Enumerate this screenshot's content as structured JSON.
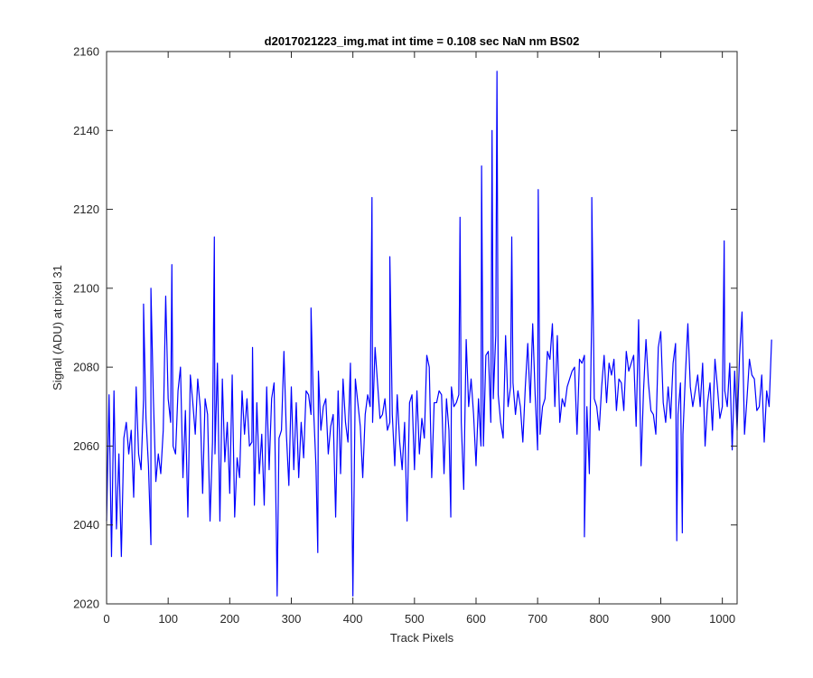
{
  "chart_data": {
    "type": "line",
    "title": "d2017021223_img.mat int time = 0.108 sec  NaN nm BS02",
    "xlabel": "Track Pixels",
    "ylabel": "Signal (ADU) at pixel 31",
    "xlim": [
      0,
      1024
    ],
    "ylim": [
      2020,
      2160
    ],
    "xticks": [
      0,
      100,
      200,
      300,
      400,
      500,
      600,
      700,
      800,
      900,
      1000
    ],
    "yticks": [
      2020,
      2040,
      2060,
      2080,
      2100,
      2120,
      2140,
      2160
    ],
    "grid": false,
    "legend": "none",
    "line_color": "#0000ff",
    "series": [
      {
        "x_start": 0,
        "x_step": 4,
        "values": [
          2041,
          2073,
          2032,
          2074,
          2039,
          2058,
          2032,
          2062,
          2066,
          2058,
          2064,
          2047,
          2075,
          2058,
          2054,
          2072,
          2067,
          2055,
          2035,
          2072,
          2051,
          2058,
          2053,
          2064,
          2098,
          2072,
          2066,
          2060,
          2058,
          2074,
          2080,
          2052,
          2069,
          2042,
          2078,
          2071,
          2063,
          2077,
          2070,
          2048,
          2072,
          2068,
          2041,
          2061,
          2058,
          2081,
          2041,
          2077,
          2056,
          2066,
          2048,
          2078,
          2042,
          2057,
          2052,
          2074,
          2063,
          2072,
          2060,
          2061,
          2045,
          2071,
          2053,
          2063,
          2045,
          2075,
          2054,
          2072,
          2076,
          2035,
          2062,
          2064,
          2084,
          2063,
          2050,
          2075,
          2054,
          2071,
          2052,
          2066,
          2057,
          2074,
          2073,
          2068,
          2070,
          2055,
          2079,
          2064,
          2070,
          2072,
          2058,
          2065,
          2068,
          2042,
          2074,
          2053,
          2077,
          2066,
          2061,
          2081,
          2022,
          2077,
          2071,
          2065,
          2052,
          2068,
          2073,
          2070,
          2066,
          2085,
          2076,
          2067,
          2068,
          2072,
          2064,
          2066,
          2068,
          2055,
          2073,
          2061,
          2054,
          2066,
          2041,
          2071,
          2073,
          2054,
          2074,
          2058,
          2067,
          2062,
          2083,
          2080,
          2052,
          2071,
          2071,
          2074,
          2073,
          2053,
          2072,
          2064,
          2075,
          2070,
          2071,
          2073,
          2066,
          2049,
          2087,
          2070,
          2077,
          2068,
          2055,
          2072,
          2060,
          2060,
          2083,
          2084,
          2066,
          2072,
          2088,
          2073,
          2066,
          2062,
          2088,
          2070,
          2075,
          2076,
          2068,
          2074,
          2070,
          2061,
          2075,
          2086,
          2071,
          2091,
          2073,
          2059,
          2063,
          2070,
          2072,
          2084,
          2082,
          2091,
          2070,
          2088,
          2066,
          2072,
          2070,
          2075,
          2077,
          2079,
          2080,
          2063,
          2082,
          2081,
          2083,
          2070,
          2053,
          2095,
          2072,
          2070,
          2064,
          2075,
          2083,
          2071,
          2081,
          2078,
          2082,
          2069,
          2077,
          2076,
          2069,
          2084,
          2079,
          2081,
          2083,
          2065,
          2092,
          2055,
          2074,
          2087,
          2076,
          2069,
          2068,
          2063,
          2085,
          2089,
          2071,
          2066,
          2075,
          2067,
          2081,
          2086,
          2068,
          2076,
          2063,
          2078,
          2091,
          2075,
          2070,
          2074,
          2078,
          2070,
          2081,
          2060,
          2071,
          2076,
          2064,
          2082,
          2075,
          2067,
          2070,
          2074,
          2070,
          2081,
          2059,
          2079,
          2064,
          2083,
          2094,
          2063,
          2072,
          2082,
          2078,
          2077,
          2069,
          2070,
          2078,
          2061,
          2074,
          2070,
          2087
        ]
      }
    ],
    "peaks": [
      {
        "x": 60,
        "y": 2096
      },
      {
        "x": 72,
        "y": 2100
      },
      {
        "x": 106,
        "y": 2106
      },
      {
        "x": 175,
        "y": 2113
      },
      {
        "x": 237,
        "y": 2085
      },
      {
        "x": 277,
        "y": 2022
      },
      {
        "x": 332,
        "y": 2095
      },
      {
        "x": 343,
        "y": 2033
      },
      {
        "x": 431,
        "y": 2123
      },
      {
        "x": 460,
        "y": 2108
      },
      {
        "x": 559,
        "y": 2042
      },
      {
        "x": 574,
        "y": 2118
      },
      {
        "x": 609,
        "y": 2131
      },
      {
        "x": 626,
        "y": 2140
      },
      {
        "x": 634,
        "y": 2155
      },
      {
        "x": 658,
        "y": 2113
      },
      {
        "x": 701,
        "y": 2125
      },
      {
        "x": 776,
        "y": 2037
      },
      {
        "x": 788,
        "y": 2123
      },
      {
        "x": 926,
        "y": 2036
      },
      {
        "x": 935,
        "y": 2038
      },
      {
        "x": 1003,
        "y": 2112
      }
    ]
  }
}
